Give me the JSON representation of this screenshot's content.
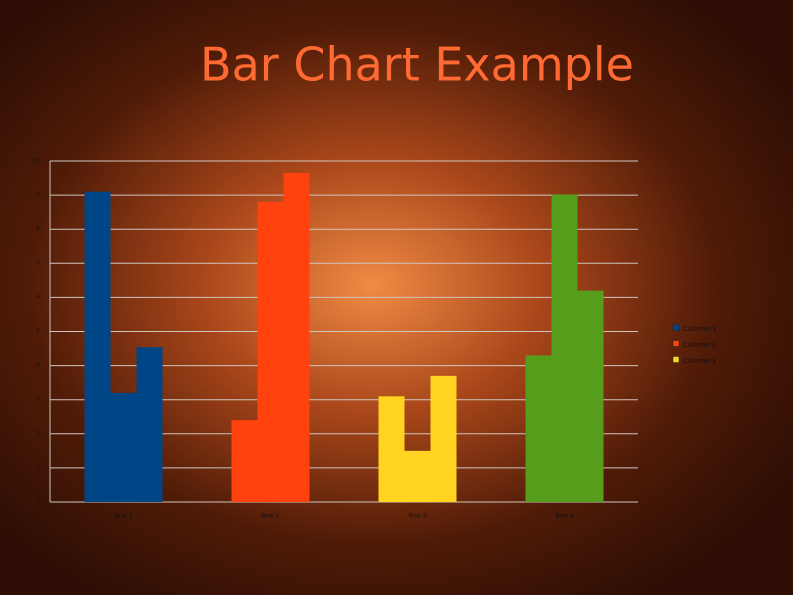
{
  "chart_data": {
    "type": "bar",
    "title": "Bar Chart Example",
    "categories": [
      "Row 1",
      "Row 2",
      "Row 3",
      "Row 4"
    ],
    "category_colors": [
      "#004586",
      "#ff420e",
      "#ffd320",
      "#579d1c"
    ],
    "series": [
      {
        "name": "Column 1",
        "color": "#004586",
        "values": [
          9.1,
          2.4,
          3.1,
          4.3
        ]
      },
      {
        "name": "Column 2",
        "color": "#ff420e",
        "values": [
          3.2,
          8.8,
          1.5,
          9.02
        ]
      },
      {
        "name": "Column 3",
        "color": "#ffd320",
        "values": [
          4.54,
          9.65,
          3.7,
          6.2
        ]
      }
    ],
    "ylim": [
      0,
      10
    ],
    "yticks": [
      0,
      1,
      2,
      3,
      4,
      5,
      6,
      7,
      8,
      9,
      10
    ],
    "grid": true,
    "legend": "right"
  }
}
